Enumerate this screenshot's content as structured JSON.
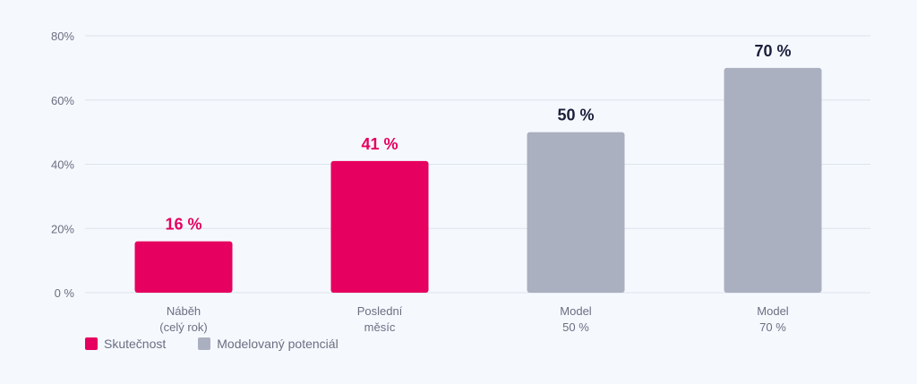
{
  "colors": {
    "actual": "#e6005f",
    "model": "#abb0c0",
    "model_label": "#1b1f3b",
    "axis_text": "#6b6e80",
    "grid": "#dde3ec"
  },
  "legend": {
    "actual_label": "Skutečnost",
    "model_label": "Modelovaný potenciál"
  },
  "chart_data": {
    "type": "bar",
    "ylim": [
      0,
      80
    ],
    "yticks": [
      {
        "value": 0,
        "label": "0 %"
      },
      {
        "value": 20,
        "label": "20%"
      },
      {
        "value": 40,
        "label": "40%"
      },
      {
        "value": 60,
        "label": "60%"
      },
      {
        "value": 80,
        "label": "80%"
      }
    ],
    "grid": true,
    "legend_position": "bottom-left",
    "categories": [
      [
        "Náběh",
        "(celý rok)"
      ],
      [
        "Poslední",
        "měsíc"
      ],
      [
        "Model",
        "50 %"
      ],
      [
        "Model",
        "70 %"
      ]
    ],
    "values": [
      16,
      41,
      50,
      70
    ],
    "data_labels": [
      "16 %",
      "41 %",
      "50 %",
      "70 %"
    ],
    "series_of_bar": [
      "actual",
      "actual",
      "model",
      "model"
    ]
  }
}
